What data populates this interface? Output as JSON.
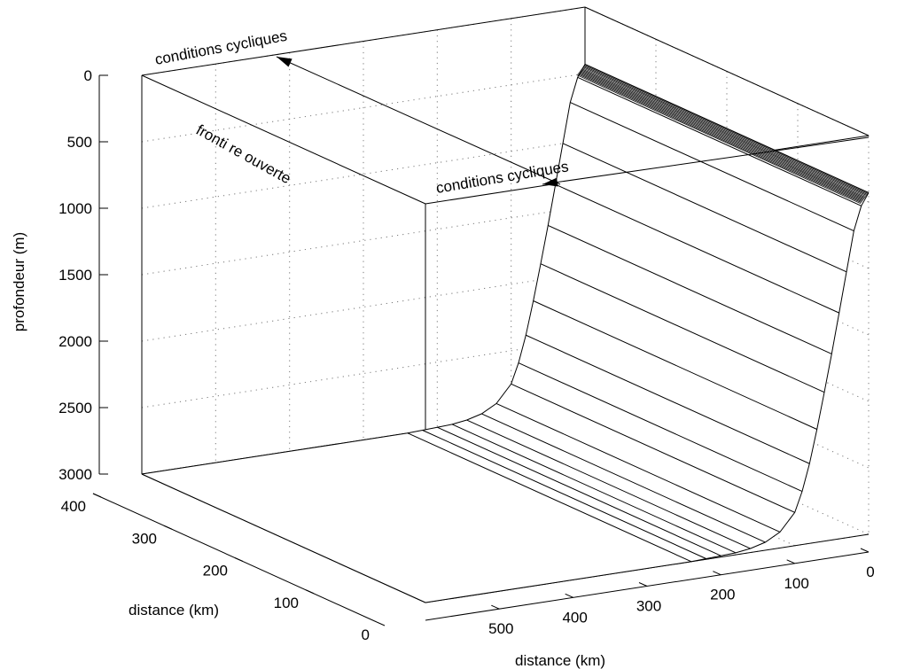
{
  "chart_data": {
    "type": "surface3d",
    "title": "",
    "zlabel": "profondeur (m)",
    "xlabel": "distance (km)",
    "ylabel": "distance (km)",
    "z_ticks": [
      "0",
      "500",
      "1000",
      "1500",
      "2000",
      "2500",
      "3000"
    ],
    "y_ticks": [
      "400",
      "300",
      "200",
      "100",
      "0"
    ],
    "x_ticks": [
      "500",
      "400",
      "300",
      "200",
      "100",
      "0"
    ],
    "zlim": [
      0,
      3000
    ],
    "xlim": [
      0,
      600
    ],
    "ylim": [
      0,
      400
    ],
    "z_reversed": true,
    "grid": true,
    "bathymetry_profile": {
      "description_axis": "x (km) vs depth (m), uniform along y",
      "x": [
        0,
        10,
        20,
        30,
        40,
        50,
        60,
        70,
        80,
        90,
        100,
        120,
        140,
        160,
        180,
        200,
        220,
        240,
        600
      ],
      "depth": [
        430,
        520,
        700,
        1000,
        1300,
        1600,
        1880,
        2150,
        2400,
        2600,
        2750,
        2880,
        2940,
        2970,
        2985,
        2990,
        2995,
        3000,
        3000
      ]
    },
    "annotations": [
      {
        "text": "conditions cycliques"
      },
      {
        "text": "conditions cycliques"
      },
      {
        "text": "fronti re ouverte"
      }
    ]
  }
}
